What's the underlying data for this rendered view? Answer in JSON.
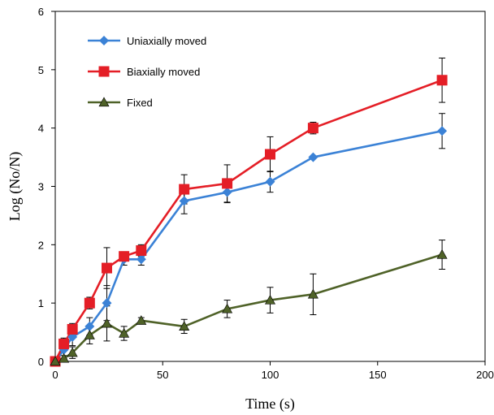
{
  "chart_data": {
    "type": "line",
    "xlabel": "Time (s)",
    "ylabel": "Log (No/N)",
    "xlim": [
      0,
      200
    ],
    "ylim": [
      0,
      6
    ],
    "xticks": [
      0,
      50,
      100,
      150,
      200
    ],
    "yticks": [
      0,
      1,
      2,
      3,
      4,
      5,
      6
    ],
    "grid": false,
    "legend_position": "top-left",
    "series": [
      {
        "name": "Uniaxially moved",
        "color": "#3b82d6",
        "marker": "diamond",
        "x": [
          0,
          4,
          8,
          16,
          24,
          32,
          40,
          60,
          80,
          100,
          120,
          180
        ],
        "y": [
          0,
          0.2,
          0.42,
          0.6,
          1.0,
          1.75,
          1.75,
          2.75,
          2.9,
          3.08,
          3.5,
          3.95
        ],
        "err": [
          0,
          0.15,
          0.15,
          0.15,
          0.3,
          0.1,
          0.1,
          0.22,
          0.18,
          0.18,
          0,
          0.3
        ]
      },
      {
        "name": "Biaxially moved",
        "color": "#e41e26",
        "marker": "square",
        "x": [
          0,
          4,
          8,
          16,
          24,
          32,
          40,
          60,
          80,
          100,
          120,
          180
        ],
        "y": [
          0,
          0.3,
          0.55,
          1.0,
          1.6,
          1.8,
          1.9,
          2.95,
          3.05,
          3.55,
          4.0,
          4.82
        ],
        "err": [
          0,
          0.1,
          0.1,
          0.1,
          0.35,
          0.08,
          0.1,
          0.25,
          0.32,
          0.3,
          0.1,
          0.38
        ]
      },
      {
        "name": "Fixed",
        "color": "#4f6228",
        "marker": "triangle",
        "x": [
          0,
          4,
          8,
          16,
          24,
          32,
          40,
          60,
          80,
          100,
          120,
          180
        ],
        "y": [
          0,
          0.05,
          0.15,
          0.45,
          0.65,
          0.48,
          0.7,
          0.6,
          0.9,
          1.05,
          1.15,
          1.83
        ],
        "err": [
          0,
          0.05,
          0.1,
          0.15,
          0.3,
          0.12,
          0.05,
          0.12,
          0.15,
          0.22,
          0.35,
          0.25
        ]
      }
    ]
  }
}
